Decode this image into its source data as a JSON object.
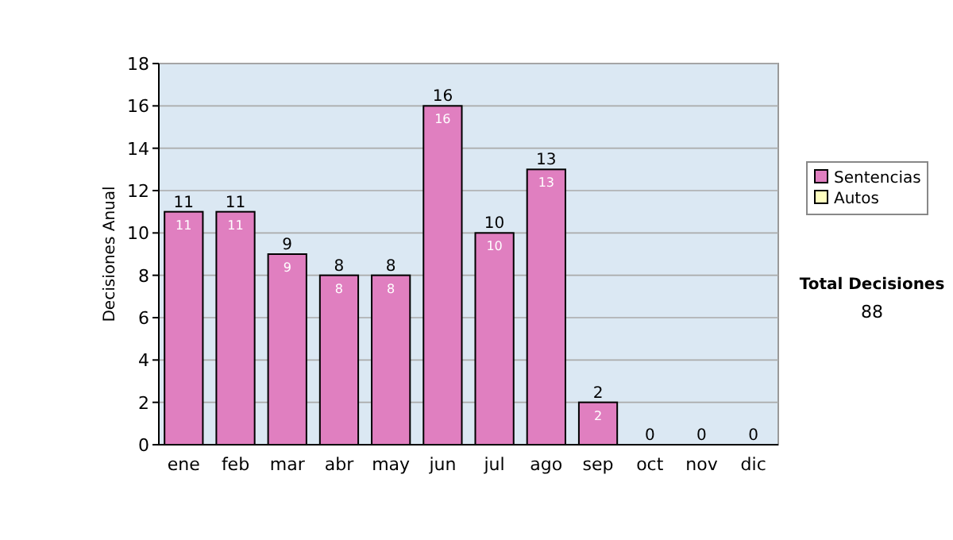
{
  "chart_data": {
    "type": "bar",
    "ylabel": "Decisiones Anual",
    "categories": [
      "ene",
      "feb",
      "mar",
      "abr",
      "may",
      "jun",
      "jul",
      "ago",
      "sep",
      "oct",
      "nov",
      "dic"
    ],
    "series": [
      {
        "name": "Sentencias",
        "color": "#e07fc0",
        "values": [
          11,
          11,
          9,
          8,
          8,
          16,
          10,
          13,
          2,
          0,
          0,
          0
        ],
        "value_labels": [
          "11",
          "11",
          "9",
          "8",
          "8",
          "16",
          "10",
          "13",
          "2",
          null,
          null,
          null
        ]
      },
      {
        "name": "Autos",
        "color": "#ffffc0",
        "values": [
          null,
          null,
          null,
          null,
          null,
          null,
          null,
          null,
          null,
          null,
          null,
          null
        ]
      }
    ],
    "stacked": true,
    "totals": [
      "11",
      "11",
      "9",
      "8",
      "8",
      "16",
      "10",
      "13",
      "2",
      "0",
      "0",
      "0"
    ],
    "ylim": [
      0,
      18
    ],
    "yticks": [
      0,
      2,
      4,
      6,
      8,
      10,
      12,
      14,
      16,
      18
    ],
    "grid": "y",
    "legend": "right",
    "annotations": [
      "Total Decisiones\n88"
    ]
  }
}
